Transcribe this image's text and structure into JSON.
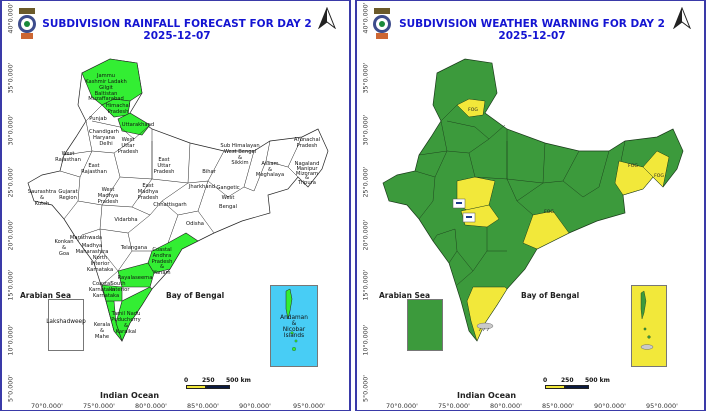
{
  "colors": {
    "frame": "#3a3aa8",
    "title": "#1414d2",
    "forecast_green": "#33ee33",
    "forecast_white": "#ffffff",
    "warning_green": "#3c9a3c",
    "warning_yellow": "#f2e83a",
    "andaman_inset": "#48cdf5"
  },
  "left": {
    "title_line1": "SUBDIVISION RAINFALL FORECAST FOR DAY 2",
    "title_line2": "2025-12-07",
    "emblem_icon": "imd-emblem-icon",
    "north_icon": "north-arrow-icon",
    "latitudes": [
      "40°0.000'",
      "35°0.000'",
      "30°0.000'",
      "25°0.000'",
      "20°0.000'",
      "15°0.000'",
      "10°0.000'",
      "5°0.000'"
    ],
    "longitudes": [
      "70°0.000'",
      "75°0.000'",
      "80°0.000'",
      "85°0.000'",
      "90°0.000'",
      "95°0.000'"
    ],
    "arabian_sea": "Arabian Sea",
    "bay_of_bengal": "Bay of Bengal",
    "indian_ocean": "Indian Ocean",
    "lakshadweep": "Lakshadweep",
    "andaman": [
      "Andaman",
      "&",
      "Nicobar",
      "Islands"
    ],
    "scale": {
      "zero": "0",
      "mid": "250",
      "end": "500 km"
    },
    "regions": [
      {
        "name": "Jammu Kashmir Ladakh Gilgit Baltistan Muzaffarabad",
        "lines": [
          "Jammu",
          "Kashmir Ladakh",
          "Gilgit",
          "Baltistan",
          "Muzaffarabad"
        ]
      },
      {
        "name": "Himachal Pradesh",
        "lines": [
          "Himachal",
          "Pradesh"
        ]
      },
      {
        "name": "Punjab",
        "lines": [
          "Punjab"
        ]
      },
      {
        "name": "Uttarakhand",
        "lines": [
          "Uttarakhand"
        ]
      },
      {
        "name": "Chandigarh Haryana Delhi",
        "lines": [
          "Chandigarh",
          "Haryana",
          "Delhi"
        ]
      },
      {
        "name": "West Uttar Pradesh",
        "lines": [
          "West",
          "Uttar",
          "Pradesh"
        ]
      },
      {
        "name": "East Uttar Pradesh",
        "lines": [
          "East",
          "Uttar",
          "Pradesh"
        ]
      },
      {
        "name": "West Rajasthan",
        "lines": [
          "West",
          "Rajasthan"
        ]
      },
      {
        "name": "East Rajasthan",
        "lines": [
          "East",
          "Rajasthan"
        ]
      },
      {
        "name": "Bihar",
        "lines": [
          "Bihar"
        ]
      },
      {
        "name": "Sub Himalayan West Bengal Sikkim",
        "lines": [
          "Sub Himalayan",
          "West Bengal",
          "&",
          "Sikkim"
        ]
      },
      {
        "name": "Arunachal Pradesh",
        "lines": [
          "Arunachal",
          "Pradesh"
        ]
      },
      {
        "name": "Assam Meghalaya",
        "lines": [
          "Assam",
          "&",
          "Meghalaya"
        ]
      },
      {
        "name": "Nagaland Manipur Mizoram Tripura",
        "lines": [
          "Nagaland",
          "Manipur",
          "Mizoram",
          "&",
          "Tripura"
        ]
      },
      {
        "name": "Saurashtra Kutch",
        "lines": [
          "Saurashtra",
          "&",
          "Kutch"
        ]
      },
      {
        "name": "Gujarat Region",
        "lines": [
          "Gujarat",
          "Region"
        ]
      },
      {
        "name": "West Madhya Pradesh",
        "lines": [
          "West",
          "Madhya",
          "Pradesh"
        ]
      },
      {
        "name": "East Madhya Pradesh",
        "lines": [
          "East",
          "Madhya",
          "Pradesh"
        ]
      },
      {
        "name": "Jharkhand",
        "lines": [
          "Jharkhand"
        ]
      },
      {
        "name": "Gangetic West Bengal",
        "lines": [
          "Gangetic",
          "West",
          "Bengal"
        ]
      },
      {
        "name": "Chhattisgarh",
        "lines": [
          "Chhattisgarh"
        ]
      },
      {
        "name": "Odisha",
        "lines": [
          "Odisha"
        ]
      },
      {
        "name": "Vidarbha",
        "lines": [
          "Vidarbha"
        ]
      },
      {
        "name": "Marathwada",
        "lines": [
          "Marathwada"
        ]
      },
      {
        "name": "Madhya Maharashtra",
        "lines": [
          "Madhya",
          "Maharashtra"
        ]
      },
      {
        "name": "Konkan Goa",
        "lines": [
          "Konkan",
          "&",
          "Goa"
        ]
      },
      {
        "name": "Telangana",
        "lines": [
          "Telangana"
        ]
      },
      {
        "name": "North Interior Karnataka",
        "lines": [
          "North",
          "Interior",
          "Karnataka"
        ]
      },
      {
        "name": "Coastal Andhra Pradesh Yanam",
        "lines": [
          "Coastal",
          "Andhra",
          "Pradesh",
          "&",
          "Yanam"
        ]
      },
      {
        "name": "Rayalaseema",
        "lines": [
          "Rayalaseema"
        ]
      },
      {
        "name": "Coastal Karnataka",
        "lines": [
          "Coastal",
          "Karnataka"
        ]
      },
      {
        "name": "South Interior Karnataka",
        "lines": [
          "South",
          "Interior",
          "Karnataka"
        ]
      },
      {
        "name": "Kerala Mahe",
        "lines": [
          "Kerala",
          "&",
          "Mahe"
        ]
      },
      {
        "name": "Tamil Nadu Puducherry Karaikal",
        "lines": [
          "Tamil Nadu",
          "Puducherry",
          "&",
          "Karaikal"
        ]
      }
    ]
  },
  "right": {
    "title_line1": "SUBDIVISION WEATHER WARNING FOR DAY 2",
    "title_line2": "2025-12-07",
    "emblem_icon": "imd-emblem-icon",
    "north_icon": "north-arrow-icon",
    "latitudes": [
      "40°0.000'",
      "35°0.000'",
      "30°0.000'",
      "25°0.000'",
      "20°0.000'",
      "15°0.000'",
      "10°0.000'",
      "5°0.000'"
    ],
    "longitudes": [
      "70°0.000'",
      "75°0.000'",
      "80°0.000'",
      "85°0.000'",
      "90°0.000'",
      "95°0.000'"
    ],
    "arabian_sea": "Arabian Sea",
    "bay_of_bengal": "Bay of Bengal",
    "indian_ocean": "Indian Ocean",
    "scale": {
      "zero": "0",
      "mid": "250",
      "end": "500 km"
    },
    "fog_labels": [
      "FOG",
      "FOG",
      "FOG",
      "FOG"
    ],
    "warning_icons": [
      "cold-wave-icon",
      "cold-wave-icon",
      "thunderstorm-icon"
    ]
  }
}
